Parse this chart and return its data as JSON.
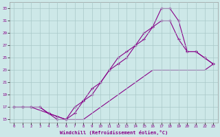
{
  "xlabel": "Windchill (Refroidissement éolien,°C)",
  "bg_color": "#cde8e8",
  "grid_color": "#a8c8c8",
  "line_color": "#880088",
  "xlim": [
    -0.5,
    23.5
  ],
  "ylim": [
    14.5,
    34
  ],
  "xticks": [
    0,
    1,
    2,
    3,
    4,
    5,
    6,
    7,
    8,
    9,
    10,
    11,
    12,
    13,
    14,
    15,
    16,
    17,
    18,
    19,
    20,
    21,
    22,
    23
  ],
  "yticks": [
    15,
    17,
    19,
    21,
    23,
    25,
    27,
    29,
    31,
    33
  ],
  "line1_x": [
    0,
    1,
    2,
    3,
    4,
    5,
    6,
    7,
    8,
    9,
    10,
    11,
    12,
    13,
    14,
    15,
    16,
    17,
    18,
    19,
    20,
    21,
    22,
    23
  ],
  "line1_y": [
    17,
    17,
    17,
    17,
    16,
    15,
    15,
    17,
    18,
    20,
    21,
    23,
    24,
    25,
    27,
    29,
    30,
    33,
    33,
    31,
    26,
    26,
    25,
    24
  ],
  "line2_x": [
    0,
    2,
    3,
    4,
    5,
    6,
    7,
    8,
    9,
    10,
    11,
    12,
    13,
    14,
    15,
    16,
    17,
    18,
    19,
    20,
    21,
    22,
    23
  ],
  "line2_y": [
    17,
    17,
    16.5,
    16,
    15.5,
    15,
    15,
    15,
    16,
    17,
    18,
    19,
    20,
    21,
    22,
    23,
    23,
    23,
    23,
    23,
    23,
    23,
    24
  ],
  "line3_x": [
    0,
    1,
    2,
    3,
    4,
    5,
    6,
    7,
    8,
    9,
    10,
    11,
    12,
    13,
    14,
    15,
    16,
    17,
    18,
    19,
    20,
    21,
    22,
    23
  ],
  "line3_y": [
    17,
    17,
    17,
    17,
    16,
    15.5,
    15,
    16,
    18,
    19,
    21,
    23,
    25,
    26,
    27,
    28,
    30,
    31,
    31,
    28,
    26,
    26,
    25,
    24
  ]
}
